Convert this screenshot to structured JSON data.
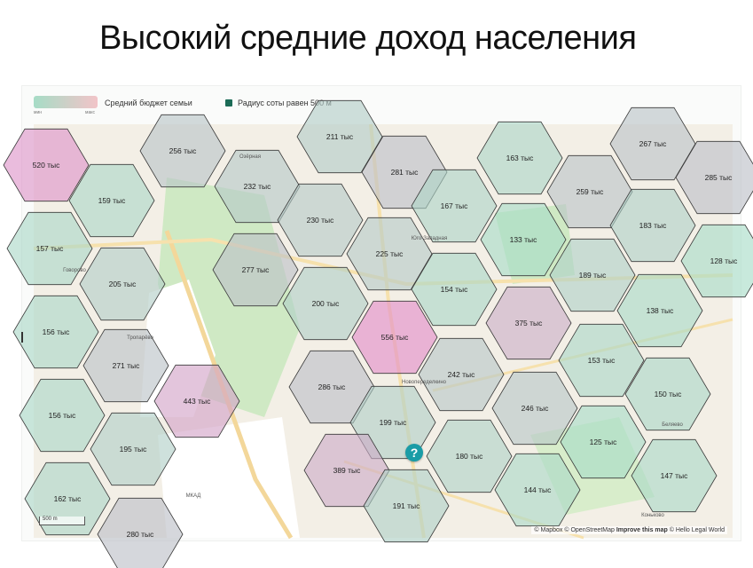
{
  "slide": {
    "title": "Высокий средние доход населения"
  },
  "legend": {
    "gradient_min": "мин",
    "gradient_max": "макс",
    "budget_label": "Средний бюджет семьи",
    "radius_label": "Радиус соты равен 500 м",
    "radius_color": "#1b6b56",
    "gradient_colors": [
      "#a6dcc6",
      "#f2c4c8"
    ]
  },
  "map": {
    "help_button": "?",
    "scale_label": "500 m",
    "attribution_prefix": "© Mapbox © OpenStreetMap",
    "attribution_improve": "Improve this map",
    "attribution_suffix": "© Hello Legal World",
    "hex_labels": [
      "211 тыс",
      "256 тыс",
      "267 тыс",
      "520 тыс",
      "281 тыс",
      "163 тыс",
      "232 тыс",
      "259 тыс",
      "285 тыс",
      "159 тыс",
      "167 тыс",
      "230 тыс",
      "183 тыс",
      "133 тыс",
      "157 тыс",
      "225 тыс",
      "128 тыс",
      "277 тыс",
      "189 тыс",
      "205 тыс",
      "154 тыс",
      "200 тыс",
      "138 тыс",
      "156 тыс",
      "375 тыс",
      "556 тыс",
      "153 тыс",
      "271 тыс",
      "242 тыс",
      "286 тыс",
      "150 тыс",
      "443 тыс",
      "246 тыс",
      "156 тыс",
      "199 тыс",
      "125 тыс",
      "195 тыс",
      "180 тыс",
      "147 тыс",
      "389 тыс",
      "144 тыс",
      "162 тыс",
      "191 тыс",
      "280 тыс"
    ],
    "place_labels": [
      "Говорово",
      "Тропарёво",
      "Новопеределкино",
      "Коньково",
      "МКАД",
      "Юго-Западная",
      "Беляево",
      "Озёрная"
    ]
  }
}
